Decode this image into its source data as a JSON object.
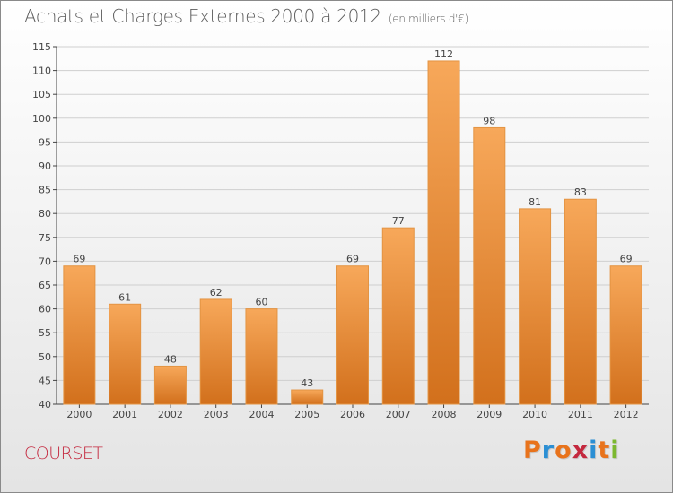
{
  "title": "Achats et Charges Externes 2000 à 2012",
  "subtitle": "(en milliers d'€)",
  "commune": "COURSET",
  "logo": {
    "text": "Proxiti",
    "colors": [
      "#e8731c",
      "#2b8fd4",
      "#e8731c",
      "#c4283e",
      "#2b8fd4",
      "#e8731c",
      "#7cb82f"
    ]
  },
  "colors": {
    "bar_top": "#f7a85a",
    "bar_bottom": "#d2701c",
    "bar_edge": "#e39443",
    "grid": "#cfcfcf",
    "axis": "#444444",
    "commune": "#c4283e"
  },
  "chart_data": {
    "type": "bar",
    "categories": [
      "2000",
      "2001",
      "2002",
      "2003",
      "2004",
      "2005",
      "2006",
      "2007",
      "2008",
      "2009",
      "2010",
      "2011",
      "2012"
    ],
    "values": [
      69,
      61,
      48,
      62,
      60,
      43,
      69,
      77,
      112,
      98,
      81,
      83,
      69
    ],
    "ylim": [
      40,
      115
    ],
    "yticks": [
      40,
      45,
      50,
      55,
      60,
      65,
      70,
      75,
      80,
      85,
      90,
      95,
      100,
      105,
      110,
      115
    ],
    "grid": true,
    "data_labels": true
  }
}
